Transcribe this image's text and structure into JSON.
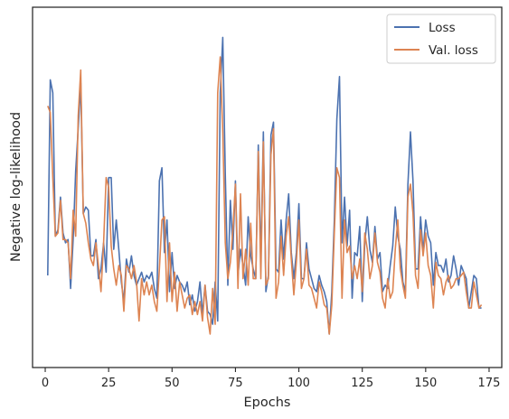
{
  "chart_data": {
    "type": "line",
    "title": "",
    "xlabel": "Epochs",
    "ylabel": "Negative log-likelihood",
    "xlim": [
      -5,
      180
    ],
    "ylim": [
      0,
      1
    ],
    "xticks": [
      0,
      25,
      50,
      75,
      100,
      125,
      150,
      175
    ],
    "yticks_shown": false,
    "grid": false,
    "legend_position": "upper right",
    "series": [
      {
        "name": "Loss",
        "color": "#4c72b0",
        "x": [
          1,
          2,
          3,
          4,
          5,
          6,
          7,
          8,
          9,
          10,
          11,
          12,
          13,
          14,
          15,
          16,
          17,
          18,
          19,
          20,
          21,
          22,
          23,
          24,
          25,
          26,
          27,
          28,
          29,
          30,
          31,
          32,
          33,
          34,
          35,
          36,
          37,
          38,
          39,
          40,
          41,
          42,
          43,
          44,
          45,
          46,
          47,
          48,
          49,
          50,
          51,
          52,
          53,
          54,
          55,
          56,
          57,
          58,
          59,
          60,
          61,
          62,
          63,
          64,
          65,
          66,
          67,
          68,
          69,
          70,
          71,
          72,
          73,
          74,
          75,
          76,
          77,
          78,
          79,
          80,
          81,
          82,
          83,
          84,
          85,
          86,
          87,
          88,
          89,
          90,
          91,
          92,
          93,
          94,
          95,
          96,
          97,
          98,
          99,
          100,
          101,
          102,
          103,
          104,
          105,
          106,
          107,
          108,
          109,
          110,
          111,
          112,
          113,
          114,
          115,
          116,
          117,
          118,
          119,
          120,
          121,
          122,
          123,
          124,
          125,
          126,
          127,
          128,
          129,
          130,
          131,
          132,
          133,
          134,
          135,
          136,
          137,
          138,
          139,
          140,
          141,
          142,
          143,
          144,
          145,
          146,
          147,
          148,
          149,
          150,
          151,
          152,
          153,
          154,
          155,
          156,
          157,
          158,
          159,
          160,
          161,
          162,
          163,
          164,
          165,
          166,
          167,
          168,
          169,
          170,
          171,
          172
        ],
        "y": [
          0.23,
          0.83,
          0.79,
          0.35,
          0.37,
          0.47,
          0.36,
          0.33,
          0.34,
          0.19,
          0.34,
          0.55,
          0.68,
          0.82,
          0.42,
          0.44,
          0.43,
          0.29,
          0.29,
          0.34,
          0.22,
          0.25,
          0.33,
          0.24,
          0.53,
          0.53,
          0.31,
          0.4,
          0.31,
          0.21,
          0.15,
          0.28,
          0.24,
          0.29,
          0.23,
          0.2,
          0.22,
          0.24,
          0.21,
          0.23,
          0.22,
          0.24,
          0.19,
          0.16,
          0.52,
          0.56,
          0.3,
          0.4,
          0.18,
          0.3,
          0.19,
          0.23,
          0.21,
          0.2,
          0.18,
          0.21,
          0.14,
          0.17,
          0.12,
          0.15,
          0.21,
          0.11,
          0.2,
          0.12,
          0.11,
          0.08,
          0.21,
          0.09,
          0.79,
          0.96,
          0.54,
          0.2,
          0.46,
          0.31,
          0.52,
          0.23,
          0.31,
          0.26,
          0.2,
          0.41,
          0.29,
          0.25,
          0.22,
          0.63,
          0.27,
          0.67,
          0.18,
          0.23,
          0.66,
          0.7,
          0.25,
          0.24,
          0.4,
          0.28,
          0.4,
          0.48,
          0.3,
          0.22,
          0.3,
          0.45,
          0.22,
          0.22,
          0.33,
          0.25,
          0.22,
          0.19,
          0.18,
          0.23,
          0.2,
          0.18,
          0.15,
          0.05,
          0.18,
          0.4,
          0.71,
          0.84,
          0.33,
          0.47,
          0.32,
          0.43,
          0.16,
          0.3,
          0.29,
          0.38,
          0.15,
          0.33,
          0.41,
          0.31,
          0.27,
          0.38,
          0.28,
          0.3,
          0.18,
          0.2,
          0.19,
          0.26,
          0.32,
          0.44,
          0.35,
          0.31,
          0.21,
          0.18,
          0.51,
          0.67,
          0.52,
          0.25,
          0.25,
          0.41,
          0.3,
          0.4,
          0.35,
          0.33,
          0.2,
          0.3,
          0.26,
          0.26,
          0.24,
          0.28,
          0.21,
          0.23,
          0.29,
          0.25,
          0.2,
          0.26,
          0.24,
          0.22,
          0.13,
          0.18,
          0.23,
          0.22,
          0.13,
          0.13
        ],
        "_note_dummy": ""
      },
      {
        "name": "Val. loss",
        "color": "#dd8452",
        "x": [
          1,
          2,
          3,
          4,
          5,
          6,
          7,
          8,
          9,
          10,
          11,
          12,
          13,
          14,
          15,
          16,
          17,
          18,
          19,
          20,
          21,
          22,
          23,
          24,
          25,
          26,
          27,
          28,
          29,
          30,
          31,
          32,
          33,
          34,
          35,
          36,
          37,
          38,
          39,
          40,
          41,
          42,
          43,
          44,
          45,
          46,
          47,
          48,
          49,
          50,
          51,
          52,
          53,
          54,
          55,
          56,
          57,
          58,
          59,
          60,
          61,
          62,
          63,
          64,
          65,
          66,
          67,
          68,
          69,
          70,
          71,
          72,
          73,
          74,
          75,
          76,
          77,
          78,
          79,
          80,
          81,
          82,
          83,
          84,
          85,
          86,
          87,
          88,
          89,
          90,
          91,
          92,
          93,
          94,
          95,
          96,
          97,
          98,
          99,
          100,
          101,
          102,
          103,
          104,
          105,
          106,
          107,
          108,
          109,
          110,
          111,
          112,
          113,
          114,
          115,
          116,
          117,
          118,
          119,
          120,
          121,
          122,
          123,
          124,
          125,
          126,
          127,
          128,
          129,
          130,
          131,
          132,
          133,
          134,
          135,
          136,
          137,
          138,
          139,
          140,
          141,
          142,
          143,
          144,
          145,
          146,
          147,
          148,
          149,
          150,
          151,
          152,
          153,
          154,
          155,
          156,
          157,
          158,
          159,
          160,
          161,
          162,
          163,
          164,
          165,
          166,
          167,
          168,
          169,
          170,
          171,
          172
        ],
        "y": [
          0.75,
          0.73,
          0.53,
          0.35,
          0.36,
          0.46,
          0.34,
          0.34,
          0.33,
          0.22,
          0.43,
          0.35,
          0.72,
          0.86,
          0.42,
          0.39,
          0.33,
          0.28,
          0.26,
          0.33,
          0.26,
          0.18,
          0.33,
          0.53,
          0.5,
          0.32,
          0.25,
          0.2,
          0.26,
          0.23,
          0.12,
          0.26,
          0.25,
          0.22,
          0.26,
          0.21,
          0.09,
          0.22,
          0.17,
          0.21,
          0.17,
          0.2,
          0.15,
          0.12,
          0.25,
          0.4,
          0.41,
          0.15,
          0.33,
          0.15,
          0.24,
          0.12,
          0.21,
          0.17,
          0.13,
          0.16,
          0.17,
          0.11,
          0.15,
          0.11,
          0.15,
          0.09,
          0.2,
          0.1,
          0.05,
          0.19,
          0.08,
          0.79,
          0.9,
          0.67,
          0.33,
          0.22,
          0.27,
          0.37,
          0.51,
          0.19,
          0.48,
          0.22,
          0.31,
          0.2,
          0.39,
          0.22,
          0.22,
          0.61,
          0.22,
          0.64,
          0.2,
          0.22,
          0.6,
          0.68,
          0.16,
          0.21,
          0.35,
          0.23,
          0.35,
          0.41,
          0.28,
          0.17,
          0.27,
          0.4,
          0.19,
          0.22,
          0.31,
          0.2,
          0.19,
          0.16,
          0.13,
          0.21,
          0.18,
          0.14,
          0.13,
          0.05,
          0.14,
          0.36,
          0.56,
          0.53,
          0.16,
          0.4,
          0.3,
          0.32,
          0.22,
          0.26,
          0.22,
          0.28,
          0.18,
          0.36,
          0.31,
          0.22,
          0.26,
          0.36,
          0.27,
          0.24,
          0.16,
          0.13,
          0.22,
          0.16,
          0.18,
          0.31,
          0.4,
          0.25,
          0.2,
          0.16,
          0.47,
          0.51,
          0.42,
          0.23,
          0.19,
          0.37,
          0.29,
          0.36,
          0.26,
          0.23,
          0.13,
          0.27,
          0.23,
          0.22,
          0.17,
          0.21,
          0.23,
          0.19,
          0.2,
          0.22,
          0.22,
          0.23,
          0.24,
          0.18,
          0.13,
          0.13,
          0.21,
          0.17,
          0.13,
          0.14
        ],
        "_note_dummy": ""
      }
    ]
  }
}
